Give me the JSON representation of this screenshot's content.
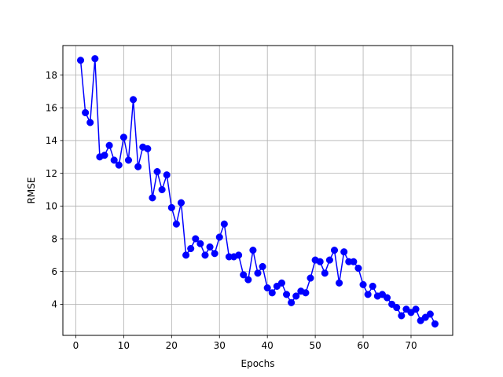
{
  "chart_data": {
    "type": "line",
    "xlabel": "Epochs",
    "ylabel": "RMSE",
    "xlim": [
      -2.7,
      78.7
    ],
    "ylim": [
      2.1,
      19.8
    ],
    "xticks": [
      0,
      10,
      20,
      30,
      40,
      50,
      60,
      70
    ],
    "yticks": [
      4,
      6,
      8,
      10,
      12,
      14,
      16,
      18
    ],
    "grid": true,
    "series": [
      {
        "color": "#0000ff",
        "marker": "circle",
        "x": [
          1,
          2,
          3,
          4,
          5,
          6,
          7,
          8,
          9,
          10,
          11,
          12,
          13,
          14,
          15,
          16,
          17,
          18,
          19,
          20,
          21,
          22,
          23,
          24,
          25,
          26,
          27,
          28,
          29,
          30,
          31,
          32,
          33,
          34,
          35,
          36,
          37,
          38,
          39,
          40,
          41,
          42,
          43,
          44,
          45,
          46,
          47,
          48,
          49,
          50,
          51,
          52,
          53,
          54,
          55,
          56,
          57,
          58,
          59,
          60,
          61,
          62,
          63,
          64,
          65,
          66,
          67,
          68,
          69,
          70,
          71,
          72,
          73,
          74,
          75
        ],
        "y": [
          18.9,
          15.7,
          15.1,
          19.0,
          13.0,
          13.1,
          13.7,
          12.8,
          12.5,
          14.2,
          12.8,
          16.5,
          12.4,
          13.6,
          13.5,
          10.5,
          12.1,
          11.0,
          11.9,
          9.9,
          8.9,
          10.2,
          7.0,
          7.4,
          8.0,
          7.7,
          7.0,
          7.5,
          7.1,
          8.1,
          8.9,
          6.9,
          6.9,
          7.0,
          5.8,
          5.5,
          7.3,
          5.9,
          6.3,
          5.0,
          4.7,
          5.1,
          5.3,
          4.6,
          4.1,
          4.5,
          4.8,
          4.7,
          5.6,
          6.7,
          6.6,
          5.9,
          6.7,
          7.3,
          5.3,
          7.2,
          6.6,
          6.6,
          6.2,
          5.2,
          4.6,
          5.1,
          4.5,
          4.6,
          4.4,
          4.0,
          3.8,
          3.3,
          3.7,
          3.5,
          3.7,
          3.0,
          3.2,
          3.4,
          2.8
        ]
      }
    ]
  }
}
